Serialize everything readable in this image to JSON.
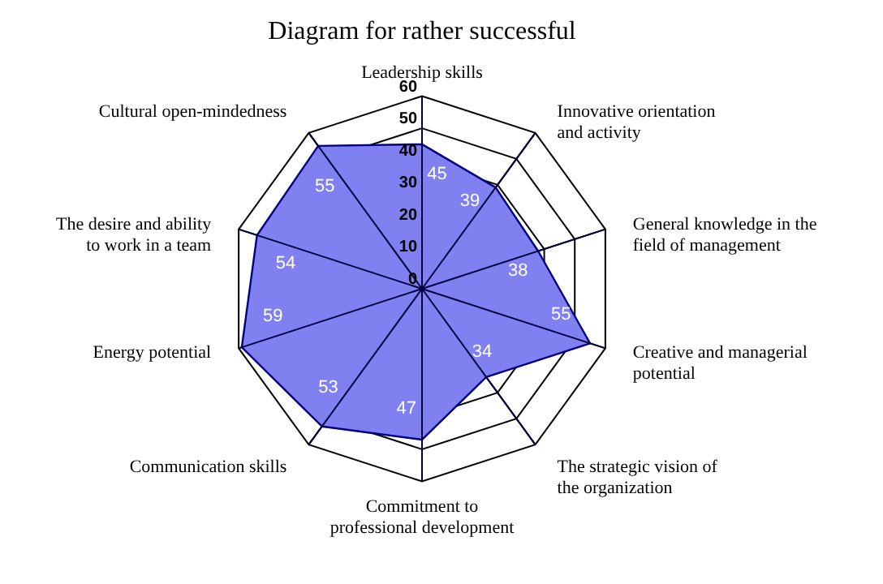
{
  "chart_data": {
    "type": "radar",
    "title": "Diagram for rather successful",
    "categories": [
      "Leadership skills",
      "Innovative orientation and activity",
      "General knowledge in the field of management",
      "Creative and managerial potential",
      "The strategic vision of the organization",
      "Commitment to professional development",
      "Communication skills",
      "Energy potential",
      "The desire and ability to work in a team",
      "Cultural open-mindedness"
    ],
    "series": [
      {
        "color": "#8080f0",
        "values": [
          45,
          39,
          38,
          55,
          34,
          47,
          53,
          59,
          54,
          55
        ]
      }
    ],
    "ylim": [
      0,
      60
    ],
    "yticks": [
      0,
      10,
      20,
      30,
      40,
      50,
      60
    ],
    "grid": true,
    "data_labels": true
  }
}
